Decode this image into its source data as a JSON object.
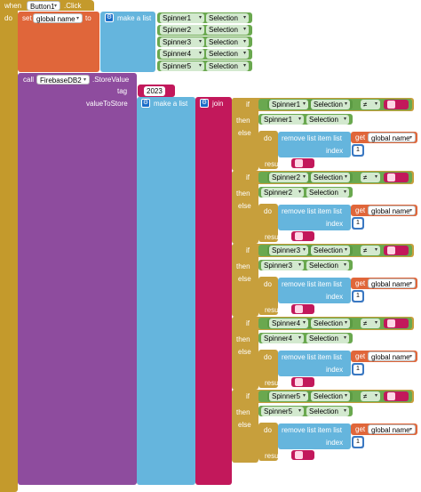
{
  "event": {
    "when": "when",
    "component": "Button1",
    "event": ".Click",
    "do": "do"
  },
  "set_block": {
    "set": "set",
    "var": "global name",
    "to": "to"
  },
  "make_list_label": "make a list",
  "spinners": [
    "Spinner1",
    "Spinner2",
    "Spinner3",
    "Spinner4",
    "Spinner5"
  ],
  "selection": "Selection",
  "call_block": {
    "call": "call",
    "component": "FirebaseDB2",
    "method": ".StoreValue",
    "tag_label": "tag",
    "tag_value": "2023",
    "value_label": "valueToStore"
  },
  "join_label": "join",
  "if_label": "if",
  "then_label": "then",
  "else_label": "else",
  "do_label": "do",
  "result_label": "result",
  "neq": "≠",
  "remove_label": "remove list item  list",
  "get_label": "get",
  "global_name": "global name",
  "index_label": "index",
  "index_value": "1",
  "colors": {
    "event": "#c49a2c",
    "var": "#e0663a",
    "list": "#65b5dd",
    "firebase": "#8e4c9e",
    "text": "#c2185b",
    "logic": "#6aa84f",
    "control": "#c79f3c",
    "math": "#3a78c2"
  }
}
